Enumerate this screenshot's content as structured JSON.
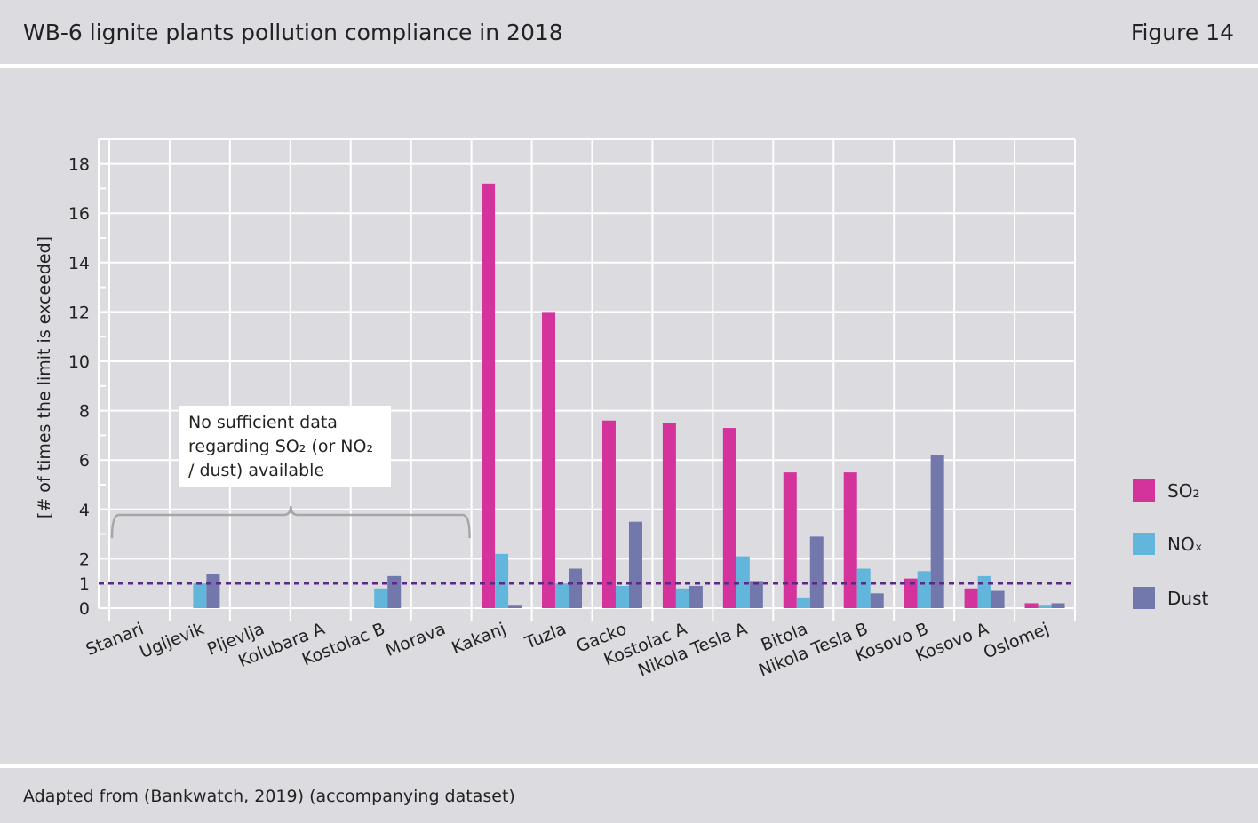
{
  "header": {
    "title": "WB-6 lignite plants pollution compliance in 2018",
    "figure_label": "Figure 14"
  },
  "footer": {
    "source": "Adapted from (Bankwatch, 2019) (accompanying dataset)"
  },
  "annotation": {
    "text": "No sufficient data regarding SO₂ (or NO₂ / dust) available"
  },
  "colors": {
    "so2": "#d3339a",
    "nox": "#62b6dc",
    "dust": "#7378ac",
    "limit_line": "#5a2a86",
    "grid": "#ffffff",
    "bracket": "#a6a6a6"
  },
  "legend": [
    {
      "label": "SO₂",
      "color": "#d3339a"
    },
    {
      "label": "NOₓ",
      "color": "#62b6dc"
    },
    {
      "label": "Dust",
      "color": "#7378ac"
    }
  ],
  "chart_data": {
    "type": "bar",
    "title": "WB-6 lignite plants pollution compliance in 2018",
    "ylabel": "[# of times the limit is exceeded]",
    "xlabel": "",
    "ylim": [
      0,
      19
    ],
    "yticks": [
      0,
      1,
      2,
      4,
      6,
      8,
      10,
      12,
      14,
      16,
      18
    ],
    "grid": true,
    "legend_position": "right",
    "reference_line": {
      "value": 1,
      "style": "dashed"
    },
    "categories": [
      "Stanari",
      "Ugljevik",
      "Pljevlja",
      "Kolubara A",
      "Kostolac B",
      "Morava",
      "Kakanj",
      "Tuzla",
      "Gacko",
      "Kostolac A",
      "Nikola Tesla A",
      "Bitola",
      "Nikola Tesla B",
      "Kosovo B",
      "Kosovo A",
      "Oslomej"
    ],
    "series": [
      {
        "name": "SO₂",
        "values": [
          null,
          null,
          null,
          null,
          null,
          null,
          17.2,
          12.0,
          7.6,
          7.5,
          7.3,
          5.5,
          5.5,
          1.2,
          0.8,
          0.2
        ]
      },
      {
        "name": "NOₓ",
        "values": [
          null,
          1.0,
          null,
          null,
          0.8,
          null,
          2.2,
          1.0,
          0.9,
          0.8,
          2.1,
          0.4,
          1.6,
          1.5,
          1.3,
          0.1
        ]
      },
      {
        "name": "Dust",
        "values": [
          null,
          1.4,
          null,
          null,
          1.3,
          null,
          0.1,
          1.6,
          3.5,
          0.9,
          1.1,
          2.9,
          0.6,
          6.2,
          0.7,
          0.2
        ]
      }
    ]
  }
}
